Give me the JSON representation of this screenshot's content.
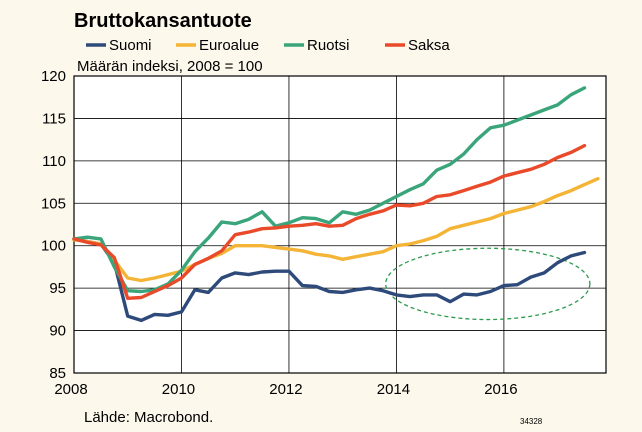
{
  "chart_data": {
    "type": "line",
    "title": "Bruttokansantuote",
    "subtitle": "Määrän indeksi, 2008 = 100",
    "source": "Lähde: Macrobond.",
    "code": "34328",
    "xlabel": "",
    "ylabel": "",
    "xlim": [
      2008,
      2017.9
    ],
    "ylim": [
      85,
      120
    ],
    "x_ticks": [
      2008,
      2010,
      2012,
      2014,
      2016
    ],
    "y_ticks": [
      85,
      90,
      95,
      100,
      105,
      110,
      115,
      120
    ],
    "grid": true,
    "legend_position": "top",
    "series": [
      {
        "name": "Suomi",
        "color": "#2e4a7a",
        "x": [
          2008.0,
          2008.25,
          2008.5,
          2008.75,
          2009.0,
          2009.25,
          2009.5,
          2009.75,
          2010.0,
          2010.25,
          2010.5,
          2010.75,
          2011.0,
          2011.25,
          2011.5,
          2011.75,
          2012.0,
          2012.25,
          2012.5,
          2012.75,
          2013.0,
          2013.25,
          2013.5,
          2013.75,
          2014.0,
          2014.25,
          2014.5,
          2014.75,
          2015.0,
          2015.25,
          2015.5,
          2015.75,
          2016.0,
          2016.25,
          2016.5,
          2016.75,
          2017.0,
          2017.25,
          2017.5
        ],
        "y": [
          100.8,
          100.5,
          100.2,
          98.0,
          91.7,
          91.2,
          91.9,
          91.8,
          92.2,
          94.8,
          94.5,
          96.2,
          96.8,
          96.6,
          96.9,
          97.0,
          97.0,
          95.3,
          95.2,
          94.6,
          94.5,
          94.8,
          95.0,
          94.7,
          94.2,
          94.0,
          94.2,
          94.2,
          93.4,
          94.3,
          94.2,
          94.6,
          95.3,
          95.4,
          96.3,
          96.8,
          98.0,
          98.8,
          99.2
        ]
      },
      {
        "name": "Euroalue",
        "color": "#f4b435",
        "x": [
          2008.0,
          2008.25,
          2008.5,
          2008.75,
          2009.0,
          2009.25,
          2009.5,
          2009.75,
          2010.0,
          2010.25,
          2010.5,
          2010.75,
          2011.0,
          2011.25,
          2011.5,
          2011.75,
          2012.0,
          2012.25,
          2012.5,
          2012.75,
          2013.0,
          2013.25,
          2013.5,
          2013.75,
          2014.0,
          2014.25,
          2014.5,
          2014.75,
          2015.0,
          2015.25,
          2015.5,
          2015.75,
          2016.0,
          2016.25,
          2016.5,
          2016.75,
          2017.0,
          2017.25,
          2017.5,
          2017.75
        ],
        "y": [
          100.7,
          100.5,
          100.2,
          98.3,
          96.2,
          95.9,
          96.2,
          96.6,
          97.0,
          97.8,
          98.5,
          99.1,
          100.0,
          100.0,
          100.0,
          99.8,
          99.6,
          99.4,
          99.0,
          98.8,
          98.4,
          98.7,
          99.0,
          99.3,
          100.0,
          100.2,
          100.6,
          101.1,
          102.0,
          102.4,
          102.8,
          103.2,
          103.8,
          104.2,
          104.6,
          105.2,
          105.9,
          106.5,
          107.2,
          107.9
        ]
      },
      {
        "name": "Ruotsi",
        "color": "#3aa57a",
        "x": [
          2008.0,
          2008.25,
          2008.5,
          2008.75,
          2009.0,
          2009.25,
          2009.5,
          2009.75,
          2010.0,
          2010.25,
          2010.5,
          2010.75,
          2011.0,
          2011.25,
          2011.5,
          2011.75,
          2012.0,
          2012.25,
          2012.5,
          2012.75,
          2013.0,
          2013.25,
          2013.5,
          2013.75,
          2014.0,
          2014.25,
          2014.5,
          2014.75,
          2015.0,
          2015.25,
          2015.5,
          2015.75,
          2016.0,
          2016.25,
          2016.5,
          2016.75,
          2017.0,
          2017.25,
          2017.5
        ],
        "y": [
          100.8,
          101.0,
          100.8,
          97.5,
          94.7,
          94.6,
          94.8,
          95.5,
          97.1,
          99.3,
          100.9,
          102.8,
          102.6,
          103.1,
          104.0,
          102.3,
          102.7,
          103.3,
          103.2,
          102.7,
          104.0,
          103.7,
          104.2,
          105.0,
          105.8,
          106.6,
          107.3,
          108.9,
          109.6,
          110.8,
          112.5,
          113.9,
          114.2,
          114.8,
          115.4,
          116.0,
          116.6,
          117.8,
          118.6
        ]
      },
      {
        "name": "Saksa",
        "color": "#e84a2a",
        "x": [
          2008.0,
          2008.25,
          2008.5,
          2008.75,
          2009.0,
          2009.25,
          2009.5,
          2009.75,
          2010.0,
          2010.25,
          2010.5,
          2010.75,
          2011.0,
          2011.25,
          2011.5,
          2011.75,
          2012.0,
          2012.25,
          2012.5,
          2012.75,
          2013.0,
          2013.25,
          2013.5,
          2013.75,
          2014.0,
          2014.25,
          2014.5,
          2014.75,
          2015.0,
          2015.25,
          2015.5,
          2015.75,
          2016.0,
          2016.25,
          2016.5,
          2016.75,
          2017.0,
          2017.25,
          2017.5
        ],
        "y": [
          100.8,
          100.4,
          100.1,
          98.6,
          93.8,
          93.9,
          94.6,
          95.3,
          96.2,
          97.8,
          98.5,
          99.4,
          101.3,
          101.6,
          102.0,
          102.1,
          102.3,
          102.4,
          102.6,
          102.3,
          102.4,
          103.2,
          103.7,
          104.1,
          104.8,
          104.7,
          105.0,
          105.8,
          106.0,
          106.5,
          107.0,
          107.5,
          108.2,
          108.6,
          109.0,
          109.6,
          110.4,
          111.0,
          111.8
        ]
      }
    ],
    "annotations": [
      {
        "type": "dashed-ellipse",
        "color": "#2e9a4e",
        "cx": 2015.7,
        "cy": 95.5,
        "rx": 1.9,
        "ry": 4.2
      }
    ]
  }
}
